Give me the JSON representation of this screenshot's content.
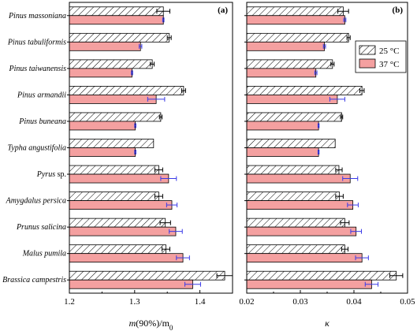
{
  "chart_data": [
    {
      "type": "bar",
      "orientation": "horizontal",
      "panel_label": "(a)",
      "xlabel": "m(90%)/m",
      "xlabel_sub": "0",
      "xlim": [
        1.2,
        1.45
      ],
      "xticks": [
        "1.2",
        "1.3",
        "1.4"
      ],
      "xtick_values": [
        1.2,
        1.3,
        1.4
      ],
      "categories": [
        "Pinus massoniana",
        "Pinus tabuliformis",
        "Pinus taiwanensis",
        "Pinus armandii",
        "Pinus buneana",
        "Typha angustifolia",
        "Pyrus",
        "Amygdalus persica",
        "Prunus salicina",
        "Malus pumila",
        "Brassica campestris"
      ],
      "series": [
        {
          "legend_index": 0,
          "values": [
            1.344,
            1.353,
            1.327,
            1.375,
            1.34,
            1.329,
            1.337,
            1.337,
            1.347,
            1.348,
            1.438
          ],
          "errors": [
            0.01,
            0.003,
            0.003,
            0.003,
            0.002,
            0.0,
            0.006,
            0.006,
            0.008,
            0.006,
            0.012
          ]
        },
        {
          "legend_index": 1,
          "values": [
            1.344,
            1.309,
            1.296,
            1.333,
            1.301,
            1.301,
            1.352,
            1.357,
            1.363,
            1.374,
            1.389
          ],
          "errors": [
            0.001,
            0.002,
            0.001,
            0.013,
            0.001,
            0.001,
            0.012,
            0.008,
            0.01,
            0.01,
            0.012
          ]
        }
      ]
    },
    {
      "type": "bar",
      "orientation": "horizontal",
      "panel_label": "(b)",
      "xlabel": "κ",
      "xlim": [
        0.02,
        0.05
      ],
      "xticks": [
        "0.02",
        "0.03",
        "0.04",
        "0.05"
      ],
      "xtick_values": [
        0.02,
        0.03,
        0.04,
        0.05
      ],
      "categories": [
        "Pinus massoniana",
        "Pinus tabuliformis",
        "Pinus taiwanensis",
        "Pinus armandii",
        "Pinus buneana",
        "Typha angustifolia",
        "Pyrus",
        "Amygdalus persica",
        "Prunus salicina",
        "Malus pumila",
        "Brassica campestris"
      ],
      "series": [
        {
          "legend_index": 0,
          "values": [
            0.038,
            0.039,
            0.036,
            0.0415,
            0.0377,
            0.0365,
            0.0372,
            0.0373,
            0.0383,
            0.0383,
            0.0479
          ],
          "errors": [
            0.001,
            0.0003,
            0.0003,
            0.0004,
            0.0002,
            0.0,
            0.0006,
            0.0007,
            0.0008,
            0.0006,
            0.0012
          ]
        },
        {
          "legend_index": 1,
          "values": [
            0.0383,
            0.0345,
            0.0329,
            0.0369,
            0.0334,
            0.0334,
            0.0393,
            0.0398,
            0.0404,
            0.0415,
            0.0433
          ],
          "errors": [
            0.0002,
            0.0002,
            0.0002,
            0.0014,
            0.0001,
            0.0001,
            0.0014,
            0.001,
            0.001,
            0.0012,
            0.0012
          ]
        }
      ]
    }
  ],
  "category_display": [
    "Pinus massoniana",
    "Pinus tabuliformis",
    "Pinus taiwanensis",
    "Pinus armandii",
    "Pinus buneana",
    "Typha angustifolia",
    "Pyrus sp.",
    "Amygdalus persica",
    "Prunus salicina",
    "Malus pumila",
    "Brassica campestris"
  ],
  "legend": [
    {
      "label": "25 °C",
      "style": "hatched",
      "fill": "#ffffff",
      "stroke": "#000000"
    },
    {
      "label": "37 °C",
      "style": "solid",
      "fill": "#f4a0a0",
      "stroke": "#000000"
    }
  ],
  "colors": {
    "bar_37": "#f4a0a0",
    "error_37": "#3a3ae8",
    "error_25": "#000000",
    "hatch": "#000000"
  }
}
